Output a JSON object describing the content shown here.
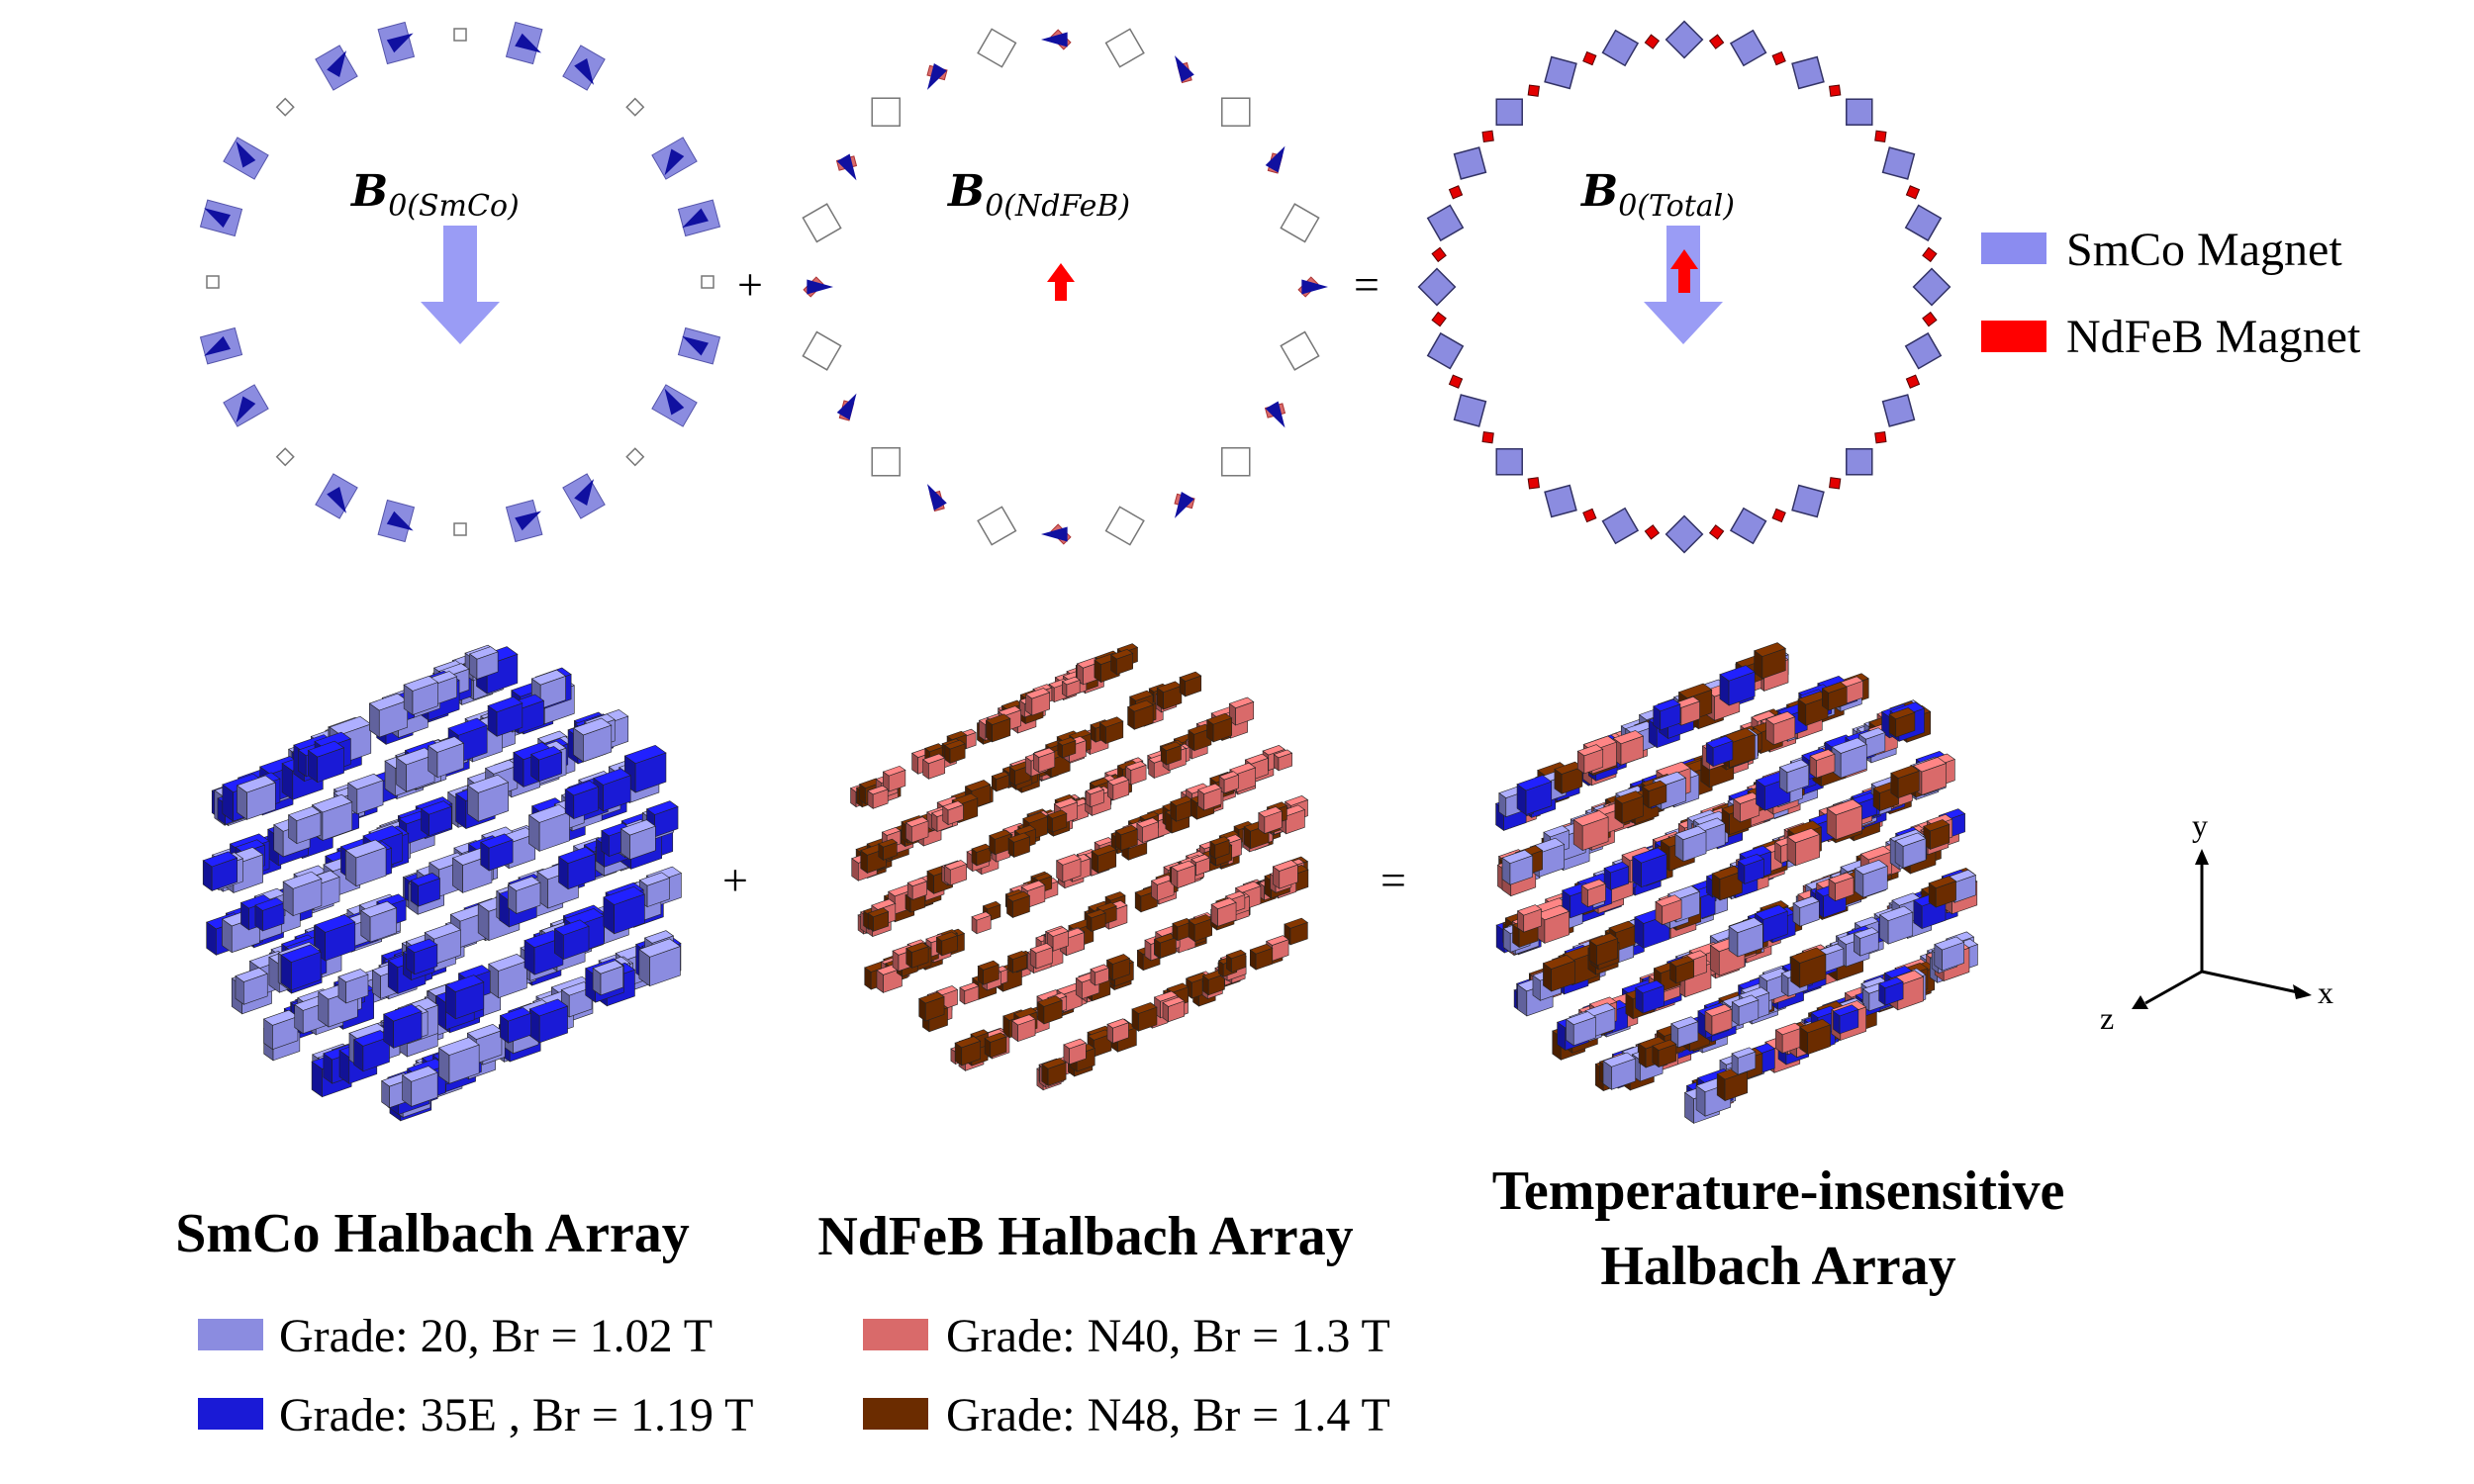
{
  "colors": {
    "smco_light": "#8b8ce0",
    "smco_dark": "#1a1ad6",
    "ndfeb_light": "#d96a6a",
    "ndfeb_dark": "#6b2c00",
    "arrow_blue": "#1010a0",
    "field_arrow": "#9a9cf5",
    "field_arrow_red": "#ff0000",
    "ring_red": "#e30000"
  },
  "equations": {
    "plus": "+",
    "equals": "="
  },
  "rings": {
    "smco": {
      "b_main": "B",
      "b_sub": "0(SmCo)"
    },
    "ndfeb": {
      "b_main": "B",
      "b_sub": "0(NdFeB)"
    },
    "total": {
      "b_main": "B",
      "b_sub": "0(Total)"
    }
  },
  "legend_top": [
    {
      "label": "SmCo Magnet",
      "color": "#8b8cf0",
      "icon": "smco-swatch"
    },
    {
      "label": "NdFeB Magnet",
      "color": "#ff0000",
      "icon": "ndfeb-swatch"
    }
  ],
  "captions": {
    "smco": "SmCo Halbach Array",
    "ndfeb": "NdFeB Halbach Array",
    "total_line1": "Temperature-insensitive",
    "total_line2": "Halbach Array"
  },
  "grades": [
    {
      "label": "Grade: 20, Br = 1.02 T",
      "color": "#8b8ce0"
    },
    {
      "label": "Grade: 35E , Br = 1.19 T",
      "color": "#1a1ad6"
    },
    {
      "label": "Grade: N40, Br = 1.3 T",
      "color": "#d96a6a"
    },
    {
      "label": "Grade: N48, Br = 1.4 T",
      "color": "#6b2c00"
    }
  ],
  "axes": {
    "x": "x",
    "y": "y",
    "z": "z"
  }
}
